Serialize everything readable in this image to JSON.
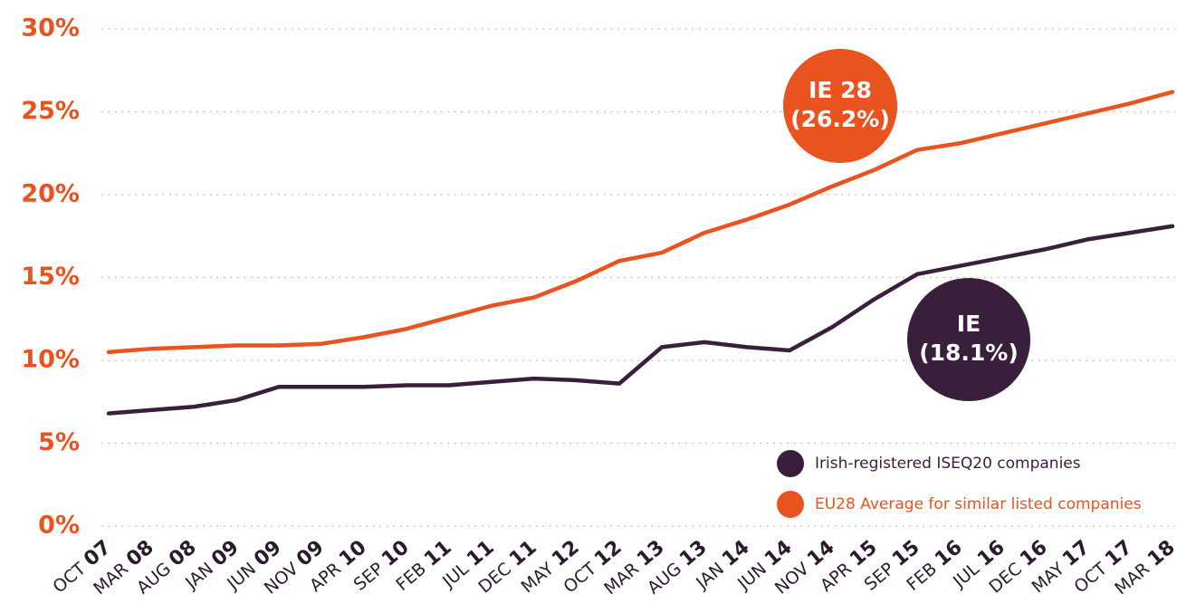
{
  "chart_data": {
    "type": "line",
    "categories": [
      "OCT 07",
      "MAR 08",
      "AUG 08",
      "JAN 09",
      "JUN 09",
      "NOV 09",
      "APR 10",
      "SEP 10",
      "FEB 11",
      "JUL 11",
      "DEC 11",
      "MAY 12",
      "OCT 12",
      "MAR 13",
      "AUG 13",
      "JAN 14",
      "JUN 14",
      "NOV 14",
      "APR 15",
      "SEP 15",
      "FEB 16",
      "JUL 16",
      "DEC 16",
      "MAY 17",
      "OCT 17",
      "MAR 18"
    ],
    "series": [
      {
        "name": "Irish-registered ISEQ20 companies",
        "color": "#3a1f3d",
        "values": [
          6.8,
          7.0,
          7.2,
          7.6,
          8.4,
          8.4,
          8.4,
          8.5,
          8.5,
          8.7,
          8.9,
          8.8,
          8.6,
          10.8,
          11.1,
          10.8,
          10.6,
          12.0,
          13.7,
          15.2,
          15.7,
          16.2,
          16.7,
          17.3,
          17.7,
          18.1
        ]
      },
      {
        "name": "EU28 Average for similar listed companies",
        "color": "#e8531f",
        "values": [
          10.5,
          10.7,
          10.8,
          10.9,
          10.9,
          11.0,
          11.4,
          11.9,
          12.6,
          13.3,
          13.8,
          14.8,
          16.0,
          16.5,
          17.7,
          18.5,
          19.4,
          20.5,
          21.5,
          22.7,
          23.1,
          23.7,
          24.3,
          24.9,
          25.5,
          26.2
        ]
      }
    ],
    "ylim": [
      0,
      30
    ],
    "yticks": [
      {
        "value": 0,
        "label": "0%"
      },
      {
        "value": 5,
        "label": "5%"
      },
      {
        "value": 10,
        "label": "10%"
      },
      {
        "value": 15,
        "label": "15%"
      },
      {
        "value": 20,
        "label": "20%"
      },
      {
        "value": 25,
        "label": "25%"
      },
      {
        "value": 30,
        "label": "30%"
      }
    ],
    "grid": true,
    "legend": "lower right",
    "annotations": [
      {
        "lines": [
          "IE 28",
          "(26.2%)"
        ],
        "color": "#e8531f"
      },
      {
        "lines": [
          "IE",
          "(18.1%)"
        ],
        "color": "#3a1f3d"
      }
    ]
  }
}
